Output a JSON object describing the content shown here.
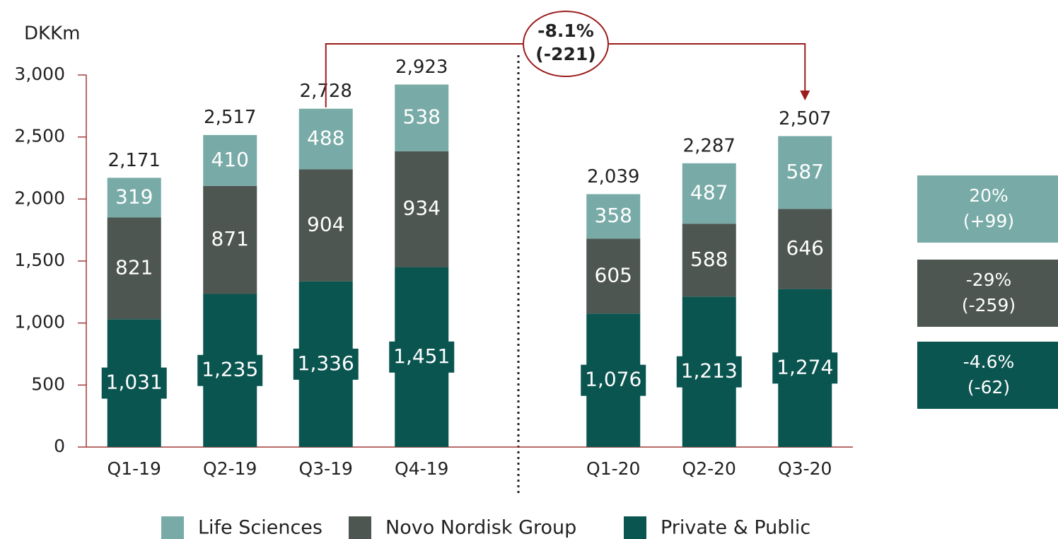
{
  "chart_data": {
    "type": "stacked_bar",
    "y_axis_label": "DKKm",
    "categories": [
      "Q1-19",
      "Q2-19",
      "Q3-19",
      "Q4-19",
      null,
      "Q1-20",
      "Q2-20",
      "Q3-20"
    ],
    "series": [
      {
        "name": "Life Sciences",
        "color": "#78aba7",
        "values": [
          319,
          410,
          488,
          538,
          null,
          358,
          487,
          587
        ],
        "value_labels": [
          "319",
          "410",
          "488",
          "538",
          null,
          "358",
          "487",
          "587"
        ]
      },
      {
        "name": "Novo Nordisk Group",
        "color": "#4d5651",
        "values": [
          821,
          871,
          904,
          934,
          null,
          605,
          588,
          646
        ],
        "value_labels": [
          "821",
          "871",
          "904",
          "934",
          null,
          "605",
          "588",
          "646"
        ]
      },
      {
        "name": "Private & Public",
        "color": "#0b5550",
        "values": [
          1031,
          1235,
          1336,
          1451,
          null,
          1076,
          1213,
          1274
        ],
        "value_labels": [
          "1,031",
          "1,235",
          "1,336",
          "1,451",
          null,
          "1,076",
          "1,213",
          "1,274"
        ]
      }
    ],
    "totals": [
      2171,
      2517,
      2728,
      2923,
      null,
      2039,
      2287,
      2507
    ],
    "total_labels": [
      "2,171",
      "2,517",
      "2,728",
      "2,923",
      null,
      "2,039",
      "2,287",
      "2,507"
    ],
    "ylim": [
      0,
      3000
    ],
    "yticks": [
      0,
      500,
      {
        "value": 1000,
        "label": "1,000"
      },
      {
        "value": 1500,
        "label": "1,500"
      },
      {
        "value": 2000,
        "label": "2,000"
      },
      {
        "value": 2500,
        "label": "2,500"
      },
      {
        "value": 3000,
        "label": "3,000"
      }
    ],
    "bracket_annotation": {
      "line1": "-8.1%",
      "line2": "(-221)"
    },
    "change_boxes": [
      {
        "line1": "20%",
        "line2": "(+99)"
      },
      {
        "line1": "-29%",
        "line2": "(-259)"
      },
      {
        "line1": "-4.6%",
        "line2": "(-62)"
      }
    ]
  }
}
